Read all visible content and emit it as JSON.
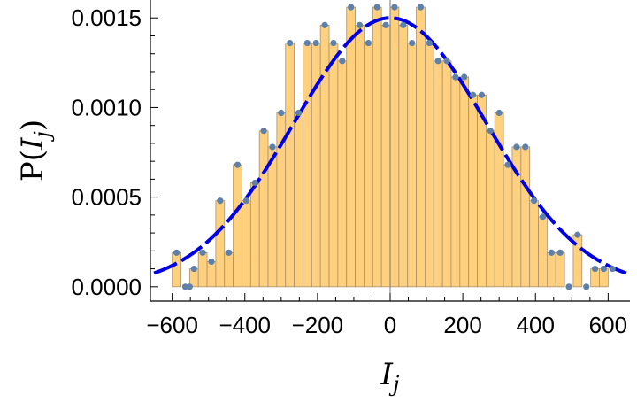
{
  "chart_data": {
    "type": "bar",
    "title": "",
    "xlabel": "I_j",
    "ylabel": "P(I_j)",
    "xlim": [
      -660,
      660
    ],
    "ylim": [
      -8e-05,
      0.0016
    ],
    "bin_width": 24,
    "xticks": [
      -600,
      -400,
      -200,
      0,
      200,
      400,
      600
    ],
    "xtick_labels": [
      "−600",
      "−400",
      "−200",
      "0",
      "200",
      "400",
      "600"
    ],
    "yticks": [
      0.0,
      0.0005,
      0.001,
      0.0015
    ],
    "ytick_labels": [
      "0.0000",
      "0.0005",
      "0.0010",
      "0.0015"
    ],
    "colors": {
      "bar_fill": "#ffd17f",
      "bar_stroke": "#a89070",
      "point": "#5f80a8",
      "curve": "#0000e0",
      "axis": "#000000"
    },
    "histogram": {
      "bin_centers": [
        -588,
        -564,
        -540,
        -516,
        -492,
        -468,
        -444,
        -420,
        -396,
        -372,
        -348,
        -324,
        -300,
        -276,
        -252,
        -228,
        -204,
        -180,
        -156,
        -132,
        -108,
        -84,
        -60,
        -36,
        -12,
        12,
        36,
        60,
        84,
        108,
        132,
        156,
        180,
        204,
        228,
        252,
        276,
        300,
        324,
        348,
        372,
        396,
        420,
        444,
        468,
        492,
        516,
        540,
        564,
        588
      ],
      "values": [
        0.00019,
        0.0,
        0.0001,
        0.00019,
        0.00014,
        0.00048,
        0.00019,
        0.00068,
        0.00048,
        0.00058,
        0.00087,
        0.00078,
        0.00097,
        0.00136,
        0.00097,
        0.00136,
        0.00136,
        0.00146,
        0.00136,
        0.00126,
        0.00156,
        0.00146,
        0.00136,
        0.00156,
        0.00146,
        0.00156,
        0.00146,
        0.00136,
        0.00156,
        0.00136,
        0.00126,
        0.00126,
        0.00117,
        0.00117,
        0.00107,
        0.00107,
        0.00087,
        0.00097,
        0.00068,
        0.00078,
        0.00078,
        0.00048,
        0.00039,
        0.00019,
        0.00019,
        0.0,
        0.00029,
        0.0,
        0.0001,
        0.0001
      ]
    },
    "points": {
      "x": [
        -588,
        -564,
        -552,
        -540,
        -516,
        -492,
        -468,
        -444,
        -420,
        -396,
        -372,
        -348,
        -324,
        -300,
        -276,
        -252,
        -228,
        -204,
        -180,
        -156,
        -132,
        -108,
        -84,
        -60,
        -36,
        -12,
        12,
        36,
        60,
        84,
        108,
        132,
        156,
        180,
        204,
        228,
        252,
        276,
        300,
        324,
        348,
        372,
        396,
        420,
        444,
        468,
        492,
        516,
        540,
        564,
        588,
        612
      ],
      "y": [
        0.00019,
        0.0,
        0.0,
        0.0001,
        0.00019,
        0.00014,
        0.00048,
        0.00019,
        0.00068,
        0.00048,
        0.00058,
        0.00087,
        0.00078,
        0.00097,
        0.00136,
        0.00097,
        0.00136,
        0.00136,
        0.00146,
        0.00136,
        0.00126,
        0.00156,
        0.00146,
        0.00136,
        0.00156,
        0.00146,
        0.00156,
        0.00146,
        0.00136,
        0.00156,
        0.00136,
        0.00126,
        0.00126,
        0.00117,
        0.00117,
        0.00107,
        0.00107,
        0.00087,
        0.00097,
        0.00068,
        0.00078,
        0.00078,
        0.00048,
        0.00039,
        0.00019,
        0.00019,
        0.0,
        0.00029,
        0.0,
        0.0001,
        0.0001,
        0.0001
      ]
    },
    "curve": {
      "type": "gaussian",
      "mean": 0,
      "std": 266,
      "peak": 0.0015,
      "range": [
        -650,
        650
      ]
    }
  }
}
